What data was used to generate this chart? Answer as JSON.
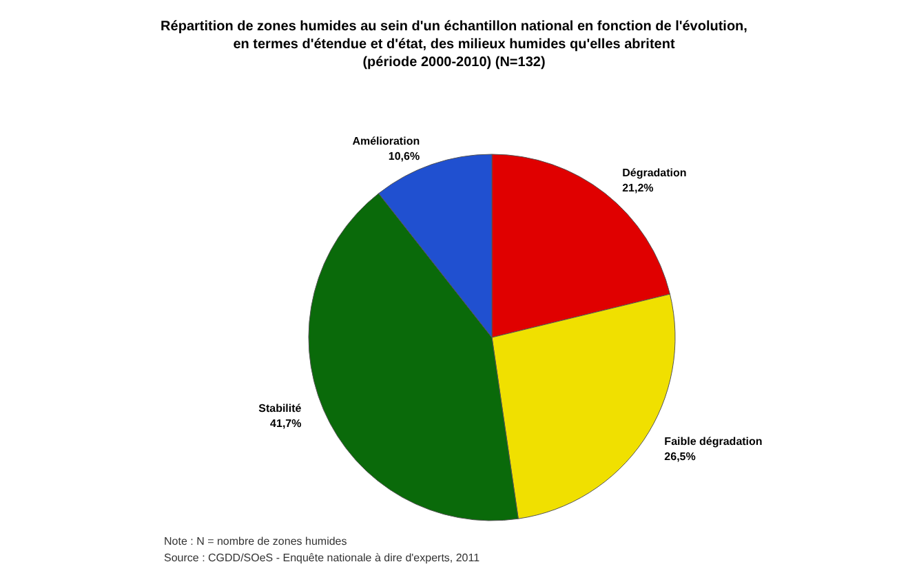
{
  "chart_data": {
    "type": "pie",
    "title": "Répartition de zones humides au sein d'un échantillon national en fonction de l'évolution,\nen termes d'étendue et d'état, des milieux humides qu'elles abritent\n(période 2000-2010) (N=132)",
    "categories": [
      "Dégradation",
      "Faible dégradation",
      "Stabilité",
      "Amélioration"
    ],
    "values": [
      21.2,
      26.5,
      41.7,
      10.6
    ],
    "value_labels": [
      "21,2%",
      "26,5%",
      "41,7%",
      "10,6%"
    ],
    "colors": [
      "#e00000",
      "#f0e000",
      "#0a6a0a",
      "#2050d0"
    ],
    "legend": false,
    "annotations": [
      "Note : N = nombre de zones humides",
      "Source : CGDD/SOeS - Enquête nationale à dire d'experts, 2011"
    ]
  }
}
